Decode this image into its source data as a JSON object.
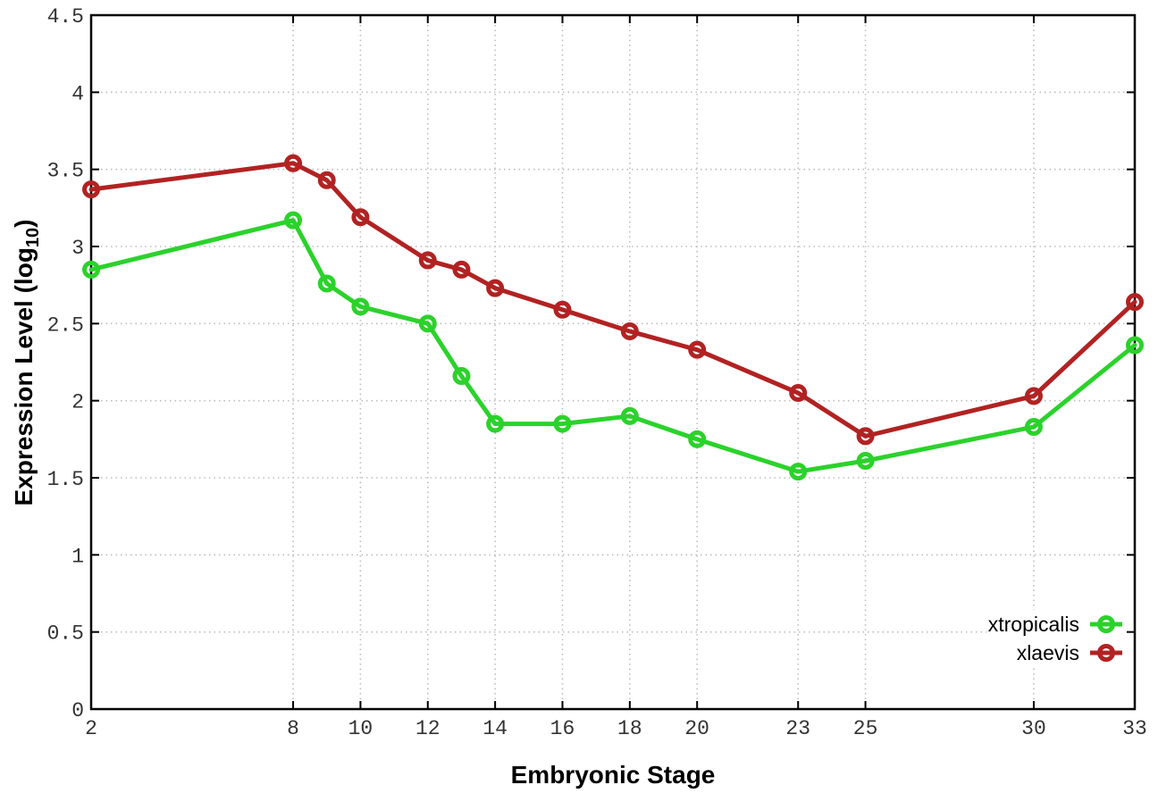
{
  "chart_data": {
    "type": "line",
    "xlabel": "Embryonic Stage",
    "ylabel": "Expression Level (log10)",
    "ylabel_parts": {
      "prefix": "Expression Level (log",
      "sub": "10",
      "suffix": ")"
    },
    "x": [
      2,
      8,
      9,
      10,
      12,
      13,
      14,
      16,
      18,
      20,
      23,
      25,
      30,
      33
    ],
    "series": [
      {
        "name": "xtropicalis",
        "color": "#2bd22b",
        "values": [
          2.85,
          3.17,
          2.76,
          2.61,
          2.5,
          2.16,
          1.85,
          1.85,
          1.9,
          1.75,
          1.54,
          1.61,
          1.83,
          2.36
        ]
      },
      {
        "name": "xlaevis",
        "color": "#b22222",
        "values": [
          3.37,
          3.54,
          3.43,
          3.19,
          2.91,
          2.85,
          2.73,
          2.59,
          2.45,
          2.33,
          2.05,
          1.77,
          2.03,
          2.64
        ]
      }
    ],
    "xticks": [
      2,
      8,
      10,
      12,
      14,
      16,
      18,
      20,
      23,
      25,
      30,
      33
    ],
    "yticks": [
      0,
      0.5,
      1,
      1.5,
      2,
      2.5,
      3,
      3.5,
      4,
      4.5
    ],
    "xlim": [
      2,
      33
    ],
    "ylim": [
      0,
      4.5
    ],
    "grid": true,
    "grid_style": "dotted",
    "grid_color": "#bdbdbd",
    "marker": "open-circle",
    "legend_position": "bottom-right",
    "background_color": "#ffffff",
    "border_color": "#000000"
  }
}
